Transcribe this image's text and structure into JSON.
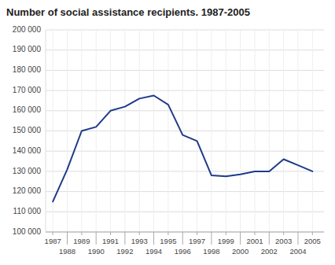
{
  "chart_data": {
    "type": "line",
    "title": "Number of social assistance recipients. 1987-2005",
    "x": [
      1987,
      1988,
      1989,
      1990,
      1991,
      1992,
      1993,
      1994,
      1995,
      1996,
      1997,
      1998,
      1999,
      2000,
      2001,
      2002,
      2003,
      2004,
      2005
    ],
    "values": [
      115000,
      131000,
      150000,
      152000,
      160000,
      162000,
      166000,
      167500,
      163000,
      148000,
      145000,
      128000,
      127500,
      128500,
      130000,
      130000,
      136000,
      133000,
      130000
    ],
    "color": "#1f3a8a",
    "xlim": [
      1986.5,
      2005.8
    ],
    "xticks": [
      1987,
      1988,
      1989,
      1990,
      1991,
      1992,
      1993,
      1994,
      1995,
      1996,
      1997,
      1998,
      1999,
      2000,
      2001,
      2002,
      2003,
      2004,
      2005
    ],
    "ylim": [
      100000,
      200000
    ],
    "yticks": [
      {
        "value": 100000,
        "label": "100 000"
      },
      {
        "value": 110000,
        "label": "110 000"
      },
      {
        "value": 120000,
        "label": "120 000"
      },
      {
        "value": 130000,
        "label": "130 000"
      },
      {
        "value": 140000,
        "label": "140 000"
      },
      {
        "value": 150000,
        "label": "150 000"
      },
      {
        "value": 160000,
        "label": "160 000"
      },
      {
        "value": 170000,
        "label": "170 000"
      },
      {
        "value": 180000,
        "label": "180 000"
      },
      {
        "value": 190000,
        "label": "190 000"
      },
      {
        "value": 200000,
        "label": "200 000"
      }
    ],
    "grid": true
  }
}
